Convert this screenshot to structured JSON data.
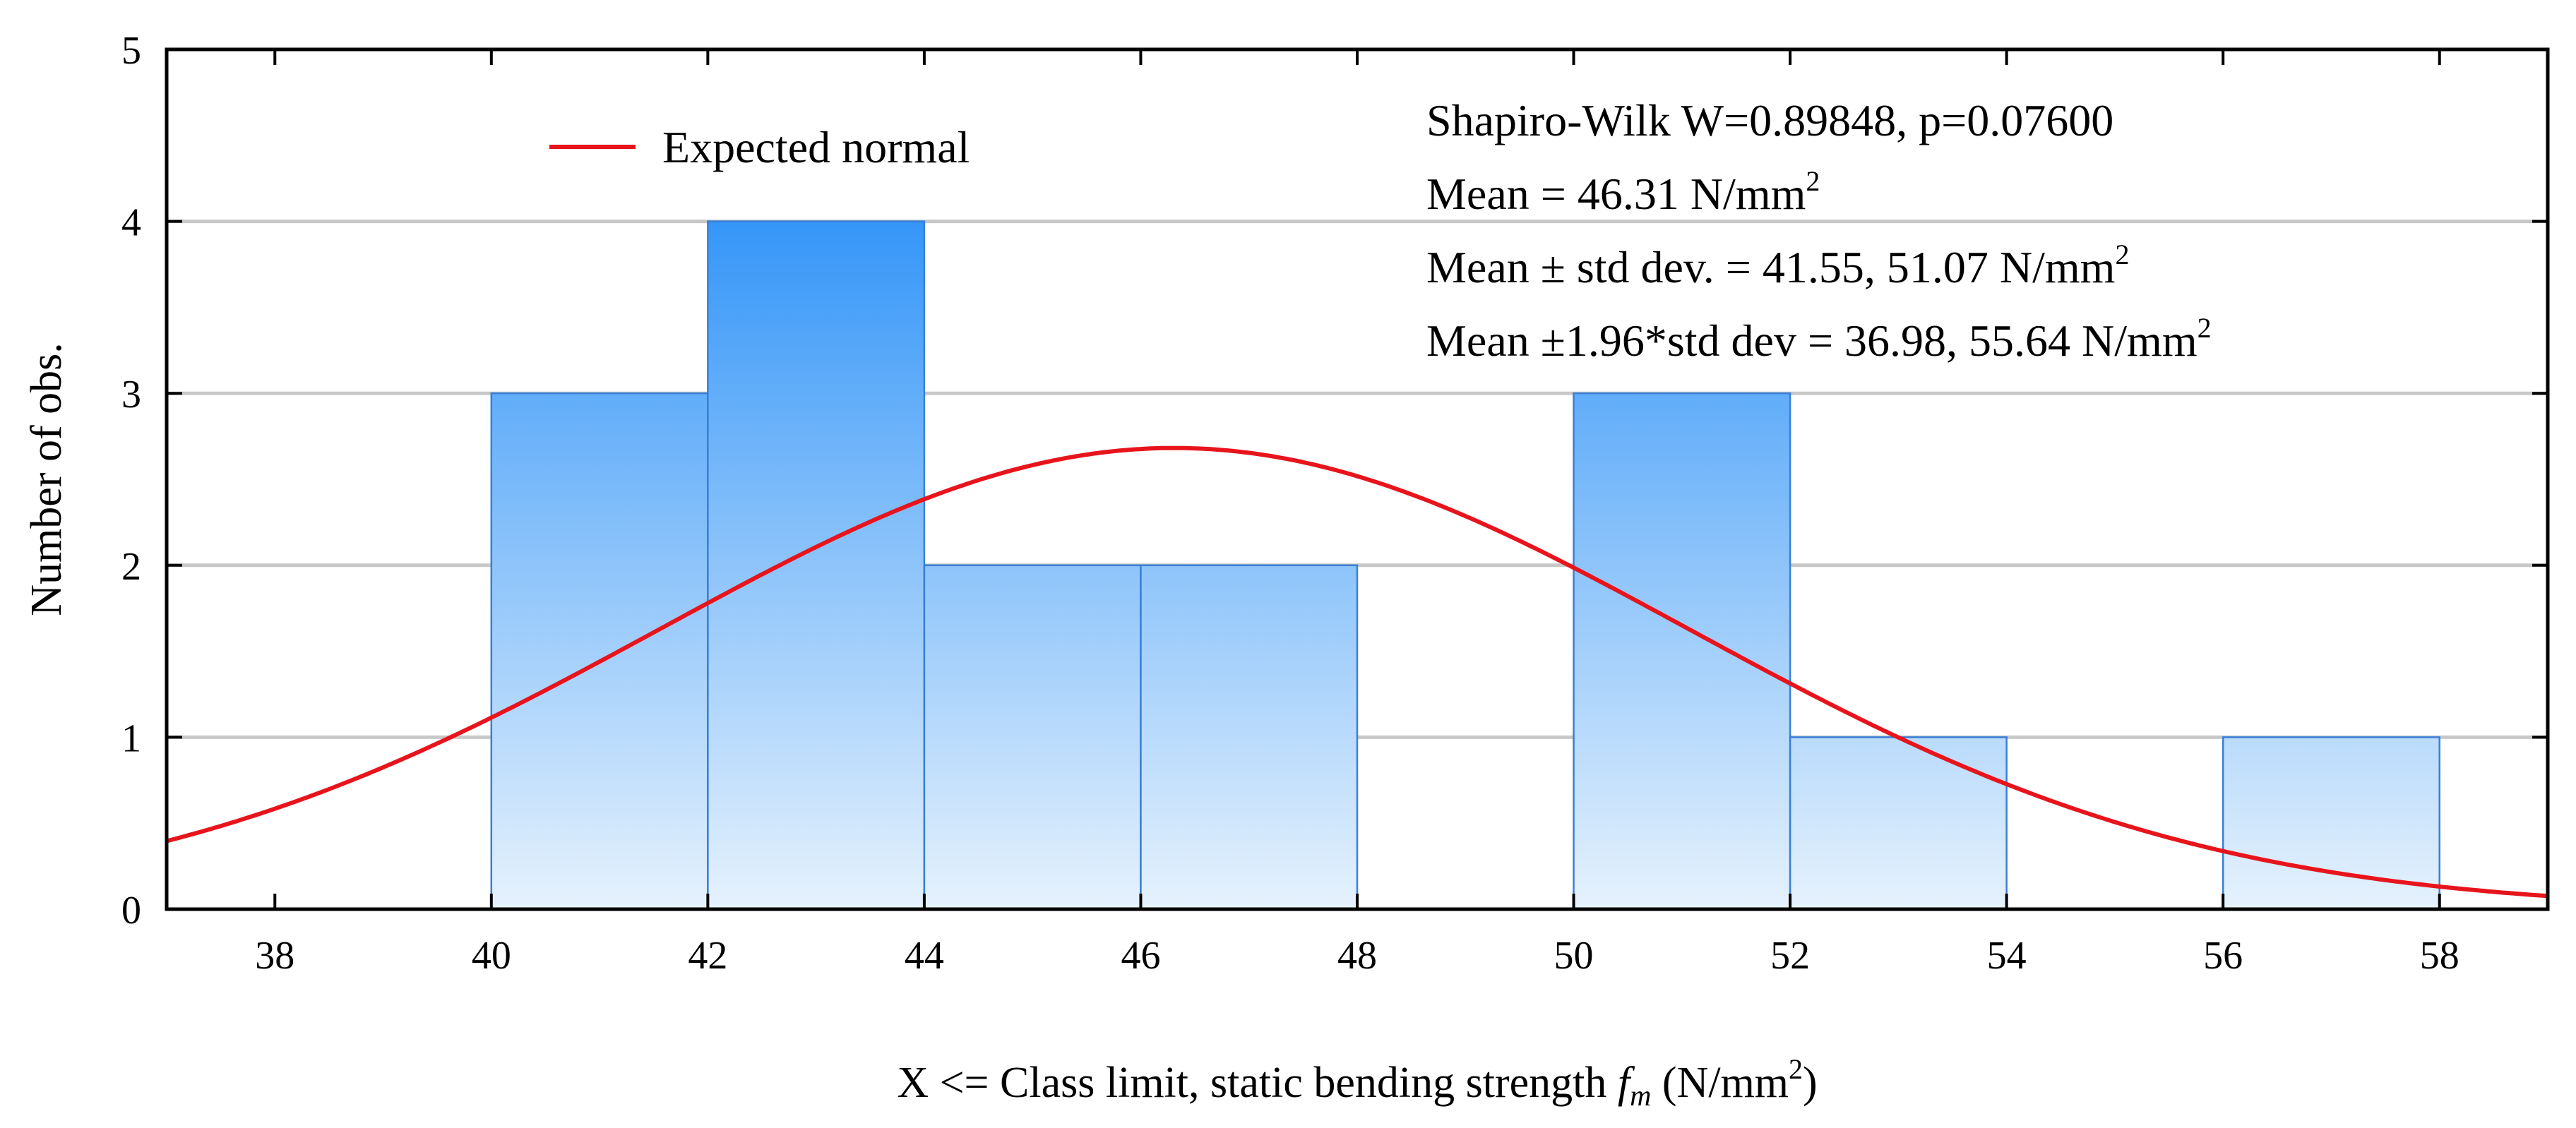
{
  "chart_data": {
    "type": "bar",
    "subtype": "histogram",
    "xlabel": {
      "prefix": "X <= Class limit, static bending strength ",
      "var": "f",
      "sub": "m",
      "unit_open": " (N/mm",
      "unit_sup": "2",
      "unit_close": ")"
    },
    "ylabel": "Number of obs.",
    "xlim": [
      37,
      59
    ],
    "ylim": [
      0,
      5
    ],
    "x_ticks": [
      "38",
      "40",
      "42",
      "44",
      "46",
      "48",
      "50",
      "52",
      "54",
      "56",
      "58"
    ],
    "y_ticks": [
      "0",
      "1",
      "2",
      "3",
      "4",
      "5"
    ],
    "grid": true,
    "bins": [
      {
        "from": 40,
        "to": 42,
        "count": 3
      },
      {
        "from": 42,
        "to": 44,
        "count": 4
      },
      {
        "from": 44,
        "to": 46,
        "count": 2
      },
      {
        "from": 46,
        "to": 48,
        "count": 2
      },
      {
        "from": 48,
        "to": 50,
        "count": 0
      },
      {
        "from": 50,
        "to": 52,
        "count": 3
      },
      {
        "from": 52,
        "to": 54,
        "count": 1
      },
      {
        "from": 54,
        "to": 56,
        "count": 0
      },
      {
        "from": 56,
        "to": 58,
        "count": 1
      }
    ],
    "normal_curve": {
      "name": "Expected normal",
      "mean": 46.31,
      "std": 4.76,
      "n": 16,
      "bin_width": 2,
      "color": "#e8141c"
    },
    "bar_colors": {
      "top": "#3596f8",
      "bottom": "#e6f2fd",
      "edge": "#3a7fd4"
    },
    "legend": {
      "label": "Expected normal",
      "position": "top-left"
    },
    "stats": [
      {
        "text": "Shapiro-Wilk W=0.89848, p=0.07600",
        "sup": ""
      },
      {
        "text": "Mean = 46.31 N/mm",
        "sup": "2"
      },
      {
        "text": "Mean ± std dev. = 41.55, 51.07 N/mm",
        "sup": "2"
      },
      {
        "text": "Mean ±1.96*std dev = 36.98, 55.64 N/mm",
        "sup": "2"
      }
    ]
  }
}
